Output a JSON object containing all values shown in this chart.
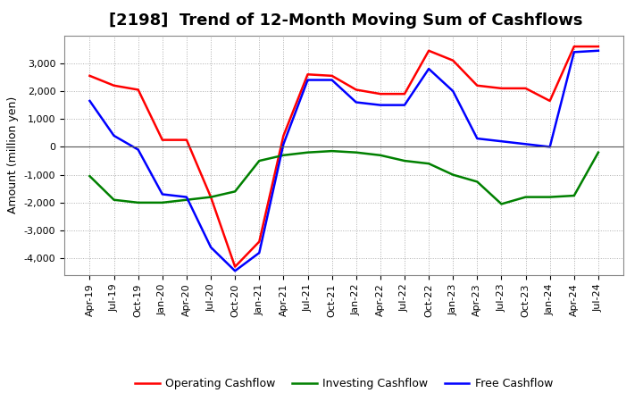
{
  "title": "[2198]  Trend of 12-Month Moving Sum of Cashflows",
  "ylabel": "Amount (million yen)",
  "x_labels": [
    "Apr-19",
    "Jul-19",
    "Oct-19",
    "Jan-20",
    "Apr-20",
    "Jul-20",
    "Oct-20",
    "Jan-21",
    "Apr-21",
    "Jul-21",
    "Oct-21",
    "Jan-22",
    "Apr-22",
    "Jul-22",
    "Oct-22",
    "Jan-23",
    "Apr-23",
    "Jul-23",
    "Oct-23",
    "Jan-24",
    "Apr-24",
    "Jul-24"
  ],
  "operating": [
    2550,
    2200,
    2050,
    250,
    250,
    -1800,
    -4300,
    -3400,
    400,
    2600,
    2550,
    2050,
    1900,
    1900,
    3450,
    3100,
    2200,
    2100,
    2100,
    1650,
    3600,
    3600
  ],
  "investing": [
    -1050,
    -1900,
    -2000,
    -2000,
    -1900,
    -1800,
    -1600,
    -500,
    -300,
    -200,
    -150,
    -200,
    -300,
    -500,
    -600,
    -1000,
    -1250,
    -2050,
    -1800,
    -1800,
    -1750,
    -200
  ],
  "free": [
    1650,
    400,
    -100,
    -1700,
    -1800,
    -3600,
    -4450,
    -3800,
    100,
    2400,
    2400,
    1600,
    1500,
    1500,
    2800,
    2000,
    300,
    200,
    100,
    0,
    3400,
    3450
  ],
  "operating_color": "#ff0000",
  "investing_color": "#008000",
  "free_color": "#0000ff",
  "ylim": [
    -4600,
    4000
  ],
  "yticks": [
    -4000,
    -3000,
    -2000,
    -1000,
    0,
    1000,
    2000,
    3000
  ],
  "background_color": "#ffffff",
  "grid_color": "#999999",
  "title_fontsize": 13,
  "axis_fontsize": 8,
  "ylabel_fontsize": 9,
  "legend_labels": [
    "Operating Cashflow",
    "Investing Cashflow",
    "Free Cashflow"
  ]
}
